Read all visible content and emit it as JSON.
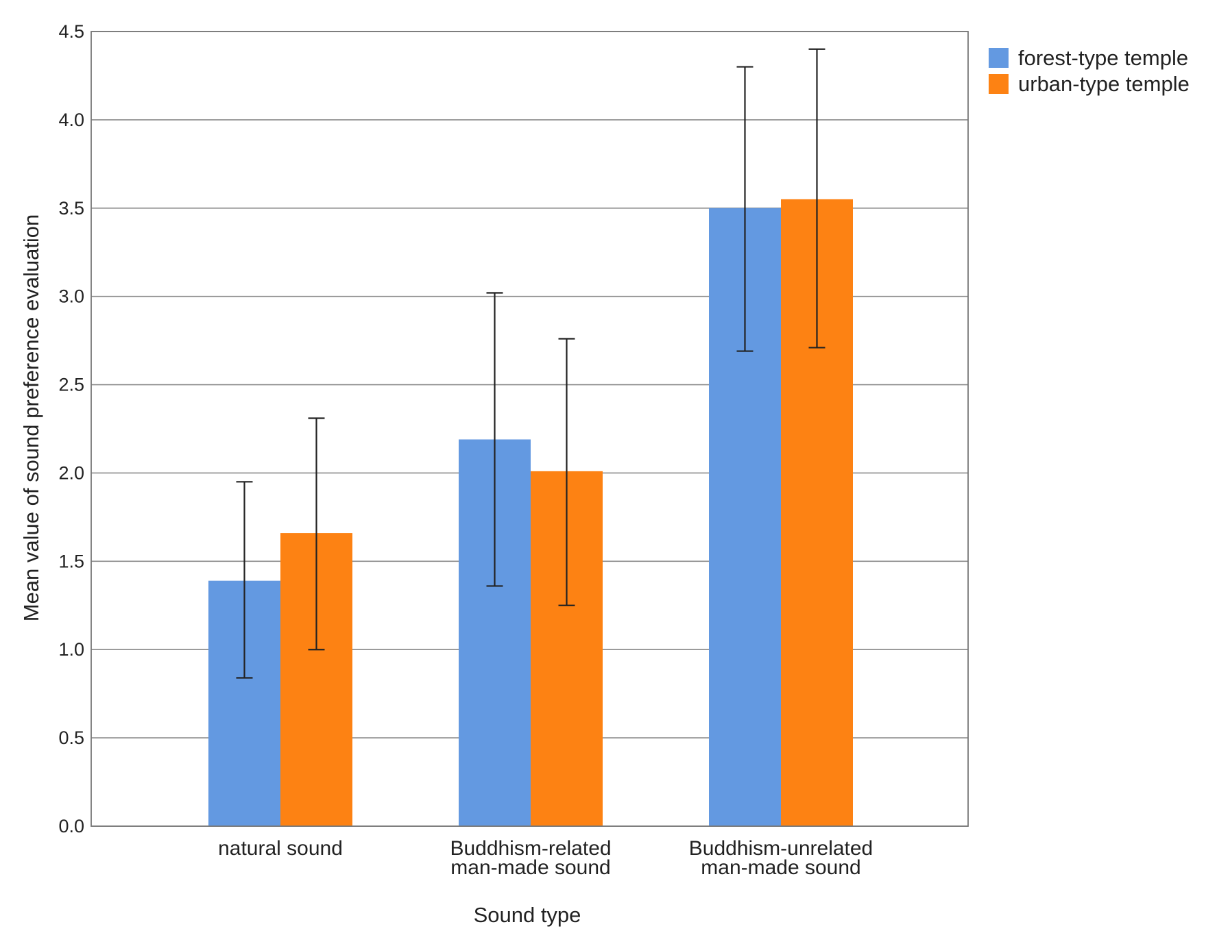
{
  "chart_data": {
    "type": "bar",
    "xlabel": "Sound type",
    "ylabel": "Mean value of sound preference evaluation",
    "ylim": [
      0,
      4.5
    ],
    "yticks": [
      "0.0",
      "0.5",
      "1.0",
      "1.5",
      "2.0",
      "2.5",
      "3.0",
      "3.5",
      "4.0",
      "4.5"
    ],
    "categories": [
      [
        "natural sound"
      ],
      [
        "Buddhism-related",
        "man-made sound"
      ],
      [
        "Buddhism-unrelated",
        "man-made sound"
      ]
    ],
    "series": [
      {
        "name": "forest-type temple",
        "color": "#6399e1",
        "values": [
          1.39,
          2.19,
          3.5
        ],
        "error_low": [
          0.84,
          1.36,
          2.69
        ],
        "error_high": [
          1.95,
          3.02,
          4.3
        ]
      },
      {
        "name": "urban-type temple",
        "color": "#fd8213",
        "values": [
          1.66,
          2.01,
          3.55
        ],
        "error_low": [
          1.0,
          1.25,
          2.71
        ],
        "error_high": [
          2.31,
          2.76,
          4.4
        ]
      }
    ],
    "legend_position": "top-right",
    "grid": true
  }
}
